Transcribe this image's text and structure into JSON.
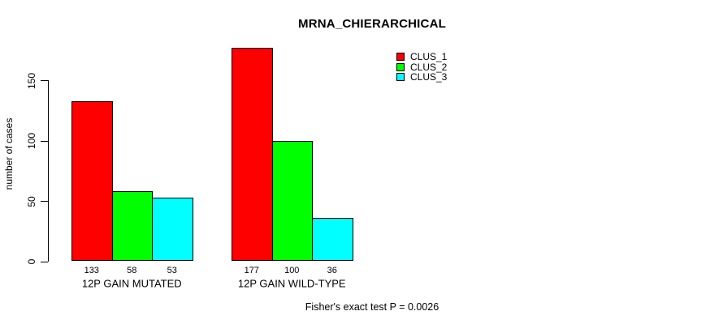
{
  "chart_data": {
    "type": "bar",
    "title": "MRNA_CHIERARCHICAL",
    "xlabel": "",
    "ylabel": "number of cases",
    "categories": [
      "12P GAIN MUTATED",
      "12P GAIN WILD-TYPE"
    ],
    "series": [
      {
        "name": "CLUS_1",
        "color": "#ff0000",
        "values": [
          133,
          177
        ]
      },
      {
        "name": "CLUS_2",
        "color": "#00ff00",
        "values": [
          58,
          100
        ]
      },
      {
        "name": "CLUS_3",
        "color": "#00ffff",
        "values": [
          53,
          36
        ]
      }
    ],
    "yticks": [
      0,
      50,
      100,
      150
    ],
    "ylim": [
      0,
      150
    ],
    "grid": false,
    "bar_value_labels_shown": true,
    "legend_position": "top-right",
    "annotation": "Fisher's exact test P = 0.0026"
  }
}
